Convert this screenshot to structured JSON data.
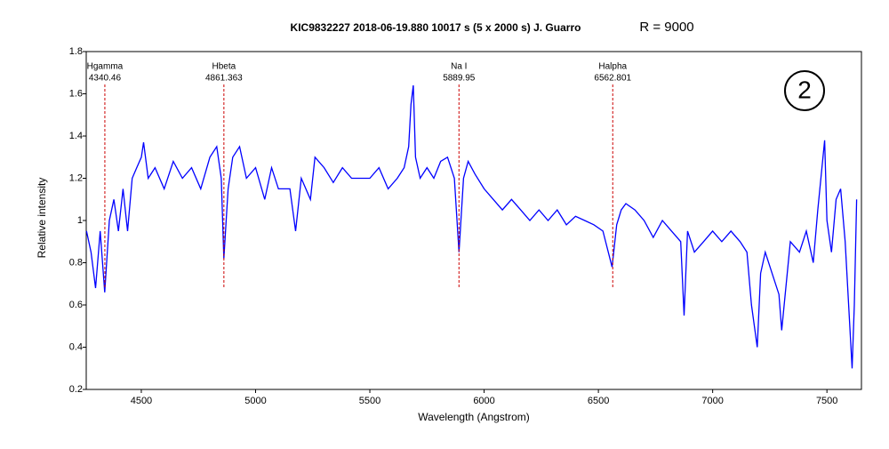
{
  "chart_data": {
    "type": "line",
    "title": "KIC9832227   2018-06-19.880   10017 s (5 x 2000 s)   J. Guarro",
    "subtitle": "R = 9000",
    "annotation": "2",
    "x_label": "Wavelength (Angstrom)",
    "y_label": "Relative intensity",
    "color": "#0000ff",
    "line_color": "#cc0000",
    "xlim": [
      4259,
      7651
    ],
    "ylim": [
      0.2,
      1.8
    ],
    "xticks": [
      4500,
      5000,
      5500,
      6000,
      6500,
      7000,
      7500
    ],
    "yticks": [
      0.2,
      0.4,
      0.6,
      0.8,
      1,
      1.2,
      1.4,
      1.6,
      1.8
    ],
    "spectral_lines": [
      {
        "name": "Hgamma",
        "value": 4340.46
      },
      {
        "name": "Hbeta",
        "value": 4861.363
      },
      {
        "name": "Na I",
        "value": 5889.95
      },
      {
        "name": "Halpha",
        "value": 6562.801
      }
    ],
    "x": [
      4260,
      4280,
      4300,
      4320,
      4340,
      4360,
      4380,
      4400,
      4420,
      4440,
      4460,
      4480,
      4500,
      4510,
      4530,
      4560,
      4600,
      4640,
      4680,
      4720,
      4760,
      4800,
      4830,
      4850,
      4861,
      4880,
      4900,
      4930,
      4960,
      5000,
      5040,
      5070,
      5100,
      5150,
      5175,
      5200,
      5240,
      5260,
      5300,
      5340,
      5380,
      5420,
      5460,
      5500,
      5540,
      5580,
      5620,
      5650,
      5670,
      5680,
      5690,
      5700,
      5720,
      5750,
      5780,
      5810,
      5840,
      5870,
      5890,
      5910,
      5930,
      5960,
      6000,
      6040,
      6080,
      6120,
      6160,
      6200,
      6240,
      6280,
      6320,
      6360,
      6400,
      6440,
      6480,
      6520,
      6560,
      6580,
      6600,
      6620,
      6660,
      6700,
      6740,
      6780,
      6820,
      6860,
      6875,
      6890,
      6920,
      6960,
      7000,
      7040,
      7080,
      7120,
      7150,
      7170,
      7195,
      7210,
      7230,
      7260,
      7290,
      7302,
      7340,
      7380,
      7410,
      7440,
      7460,
      7490,
      7500,
      7520,
      7540,
      7560,
      7580,
      7600,
      7610,
      7620,
      7630
    ],
    "values": [
      0.95,
      0.85,
      0.68,
      0.95,
      0.66,
      1.0,
      1.1,
      0.95,
      1.15,
      0.95,
      1.2,
      1.25,
      1.3,
      1.37,
      1.2,
      1.25,
      1.15,
      1.28,
      1.2,
      1.25,
      1.15,
      1.3,
      1.35,
      1.2,
      0.82,
      1.15,
      1.3,
      1.35,
      1.2,
      1.25,
      1.1,
      1.25,
      1.15,
      1.15,
      0.95,
      1.2,
      1.1,
      1.3,
      1.25,
      1.18,
      1.25,
      1.2,
      1.2,
      1.2,
      1.25,
      1.15,
      1.2,
      1.25,
      1.35,
      1.55,
      1.64,
      1.3,
      1.2,
      1.25,
      1.2,
      1.28,
      1.3,
      1.2,
      0.85,
      1.2,
      1.28,
      1.22,
      1.15,
      1.1,
      1.05,
      1.1,
      1.05,
      1.0,
      1.05,
      1.0,
      1.05,
      0.98,
      1.02,
      1.0,
      0.98,
      0.95,
      0.78,
      0.98,
      1.05,
      1.08,
      1.05,
      1.0,
      0.92,
      1.0,
      0.95,
      0.9,
      0.55,
      0.95,
      0.85,
      0.9,
      0.95,
      0.9,
      0.95,
      0.9,
      0.85,
      0.6,
      0.4,
      0.75,
      0.85,
      0.75,
      0.65,
      0.48,
      0.9,
      0.85,
      0.95,
      0.8,
      1.05,
      1.38,
      1.0,
      0.85,
      1.1,
      1.15,
      0.9,
      0.5,
      0.3,
      0.6,
      1.1
    ]
  }
}
